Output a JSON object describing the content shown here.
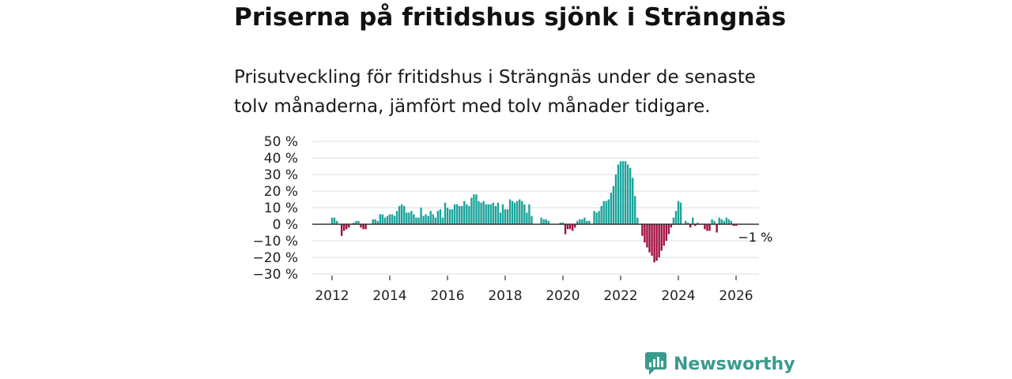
{
  "title": "Priserna på fritidshus sjönk i Strängnäs",
  "subtitle_lines": [
    "Prisutveckling för fritidshus i Strängnäs under de senaste",
    "tolv månaderna, jämfört med tolv månader tidigare."
  ],
  "brand": "Newsworthy",
  "colors": {
    "positive": "#1aa39a",
    "negative": "#a10d3d",
    "grid": "#dddddd",
    "zero_line": "#333333",
    "brand": "#3a9a8e"
  },
  "chart_data": {
    "type": "bar",
    "ylim": [
      -30,
      50
    ],
    "yticks": [
      50,
      40,
      30,
      20,
      10,
      0,
      -10,
      -20,
      -30
    ],
    "ytick_labels": [
      "50 %",
      "40 %",
      "30 %",
      "20 %",
      "10 %",
      "0 %",
      "−10 %",
      "−20 %",
      "−30 %"
    ],
    "xticks": [
      2012,
      2014,
      2016,
      2018,
      2020,
      2022,
      2024,
      2026
    ],
    "xtick_labels": [
      "2012",
      "2014",
      "2016",
      "2018",
      "2020",
      "2022",
      "2024",
      "2026"
    ],
    "x_start": 2012.0,
    "x_step": 0.0833333,
    "values": [
      4,
      4,
      2,
      null,
      -7,
      -4,
      -3,
      -2,
      null,
      1,
      2,
      2,
      -2,
      -3,
      -3,
      null,
      null,
      3,
      3,
      2,
      6,
      6,
      4,
      5,
      6,
      6,
      5,
      8,
      11,
      12,
      11,
      7,
      7,
      8,
      6,
      4,
      4,
      10,
      5,
      6,
      5,
      8,
      6,
      4,
      8,
      9,
      4,
      13,
      10,
      9,
      9,
      12,
      12,
      11,
      11,
      14,
      12,
      11,
      16,
      18,
      18,
      14,
      13,
      14,
      12,
      12,
      12,
      13,
      11,
      13,
      7,
      12,
      9,
      9,
      15,
      14,
      13,
      14,
      15,
      14,
      12,
      7,
      12,
      5,
      null,
      null,
      null,
      4,
      3,
      3,
      2,
      null,
      null,
      null,
      null,
      1,
      1,
      -6,
      -3,
      -3,
      -4,
      -2,
      2,
      3,
      3,
      4,
      2,
      2,
      null,
      8,
      7,
      8,
      11,
      14,
      14,
      15,
      19,
      23,
      30,
      36,
      38,
      38,
      38,
      36,
      34,
      28,
      17,
      4,
      null,
      -7,
      -11,
      -14,
      -17,
      -19,
      -23,
      -22,
      -20,
      -16,
      -13,
      -10,
      -6,
      -2,
      4,
      8,
      14,
      13,
      null,
      2,
      1,
      -2,
      4,
      -1,
      1,
      null,
      null,
      -3,
      -4,
      -4,
      3,
      2,
      -5,
      4,
      3,
      2,
      4,
      3,
      2,
      -1,
      -1
    ],
    "annotation": {
      "text": "−1 %",
      "index": 176
    }
  }
}
